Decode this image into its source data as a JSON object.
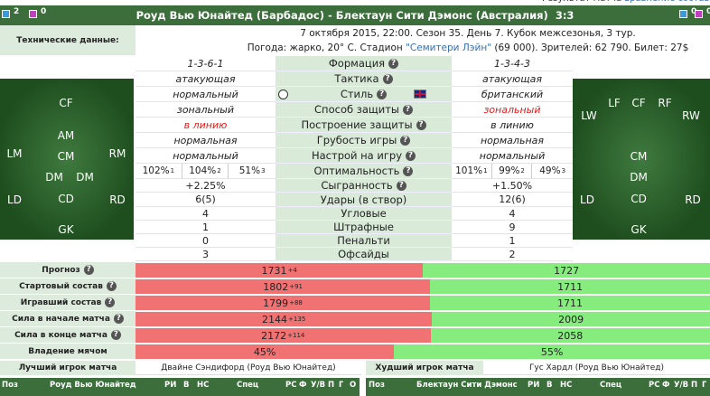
{
  "top_links": [
    "Результат матча",
    "Сравнение составов"
  ],
  "header": {
    "title": "Роуд Вью Юнайтед (Барбадос) - Блектаун Сити Дэмонс (Австралия)",
    "score": "3:3",
    "home_icons": [
      "2",
      "0"
    ],
    "away_icons": [
      "0",
      "0"
    ]
  },
  "tech": {
    "label": "Технические данные:",
    "line1": "7 октября 2015, 22:00. Сезон 35. День 7. Кубок межсезонья, 3 тур.",
    "line2_prefix": "Погода: жарко, 20° С. Стадион ",
    "stadium": "\"Семитери Лэйн\"",
    "line2_suffix": " (69 000). Зрителей: 62 790. Билет: 27$"
  },
  "home_field": [
    "CF",
    "AM",
    "LM",
    "CM",
    "RM",
    "DM",
    "DM",
    "LD",
    "CD",
    "RD",
    "GK"
  ],
  "away_field": [
    "LW",
    "LF",
    "CF",
    "RF",
    "RW",
    "CM",
    "DM",
    "LD",
    "CD",
    "RD",
    "GK"
  ],
  "stats": [
    {
      "label": "Формация",
      "home": "1-3-6-1",
      "away": "1-3-4-3"
    },
    {
      "label": "Тактика",
      "home": "атакующая",
      "away": "атакующая"
    },
    {
      "label": "Стиль",
      "home": "нормальный",
      "away": "британский"
    },
    {
      "label": "Способ защиты",
      "home": "зональный",
      "away": "зональный"
    },
    {
      "label": "Построение защиты",
      "home": "в линию",
      "away": "в линию"
    },
    {
      "label": "Грубость игры",
      "home": "нормальная",
      "away": "нормальная"
    },
    {
      "label": "Настрой на игру",
      "home": "нормальный",
      "away": "нормальный"
    },
    {
      "label": "Оптимальность",
      "home": [
        [
          "102%",
          "1"
        ],
        [
          "104%",
          "2"
        ],
        [
          "51%",
          "3"
        ]
      ],
      "away": [
        [
          "101%",
          "1"
        ],
        [
          "99%",
          "2"
        ],
        [
          "49%",
          "3"
        ]
      ]
    },
    {
      "label": "Сыгранность",
      "home": "+2.25%",
      "away": "+1.50%"
    },
    {
      "label": "Удары (в створ)",
      "home": "6(5)",
      "away": "12(6)"
    },
    {
      "label": "Угловые",
      "home": "4",
      "away": "4"
    },
    {
      "label": "Штрафные",
      "home": "1",
      "away": "9"
    },
    {
      "label": "Пенальти",
      "home": "0",
      "away": "1"
    },
    {
      "label": "Офсайды",
      "home": "3",
      "away": "2"
    }
  ],
  "bars": [
    {
      "label": "Прогноз",
      "home": 1731,
      "home_diff": "+4",
      "away": 1727
    },
    {
      "label": "Стартовый состав",
      "home": 1802,
      "home_diff": "+91",
      "away": 1711
    },
    {
      "label": "Игравший состав",
      "home": 1799,
      "home_diff": "+88",
      "away": 1711
    },
    {
      "label": "Сила в начале матча",
      "home": 2144,
      "home_diff": "+135",
      "away": 2009
    },
    {
      "label": "Сила в конце матча",
      "home": 2172,
      "home_diff": "+114",
      "away": 2058
    },
    {
      "label": "Владение мячом",
      "home": 45,
      "home_label": "45%",
      "away": 55,
      "away_label": "55%"
    }
  ],
  "best": {
    "label": "Лучший игрок матча",
    "player": "Двайне Сэндифорд (Роуд Вью Юнайтед)"
  },
  "worst": {
    "label": "Худший игрок матча",
    "player": "Гус Хардл (Роуд Вью Юнайтед)"
  },
  "footer": {
    "home": [
      "Поз",
      "Роуд Вью Юнайтед",
      "РИ",
      "В",
      "НС",
      "Спец",
      "РС",
      "Ф",
      "У/В",
      "П",
      "Г",
      "О"
    ],
    "away": [
      "Поз",
      "Блектаун Сити Дэмонс",
      "РИ",
      "В",
      "НС",
      "Спец",
      "РС",
      "Ф",
      "У/В",
      "П",
      "Г",
      "О"
    ]
  }
}
